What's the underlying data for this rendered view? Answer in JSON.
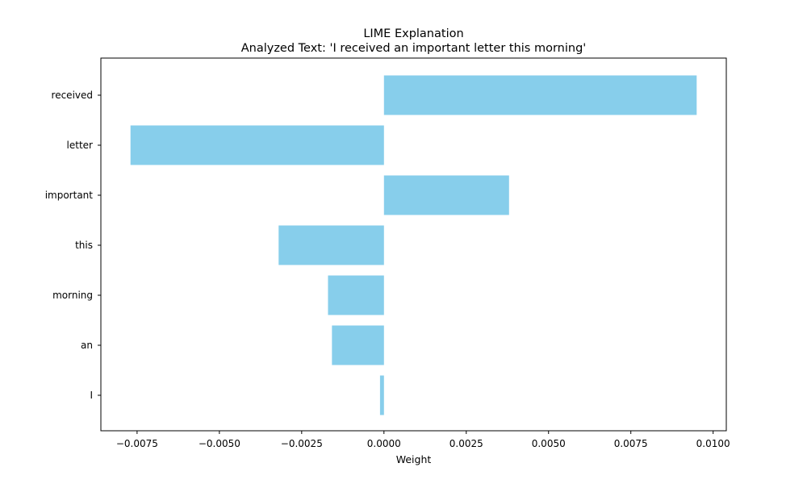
{
  "chart_data": {
    "type": "bar",
    "orientation": "horizontal",
    "title": "LIME Explanation",
    "subtitle": "Analyzed Text: 'I received an important letter this morning'",
    "xlabel": "Weight",
    "ylabel": "",
    "categories": [
      "received",
      "letter",
      "important",
      "this",
      "morning",
      "an",
      "I"
    ],
    "values": [
      0.0095,
      -0.0077,
      0.0038,
      -0.0032,
      -0.0017,
      -0.00158,
      -0.00012
    ],
    "xlim": [
      -0.0086,
      0.0104
    ],
    "xticks": [
      -0.0075,
      -0.005,
      -0.0025,
      0.0,
      0.0025,
      0.005,
      0.0075,
      0.01
    ],
    "xtick_labels": [
      "−0.0075",
      "−0.0050",
      "−0.0025",
      "0.0000",
      "0.0025",
      "0.0050",
      "0.0075",
      "0.0100"
    ],
    "bar_color": "#87CEEB",
    "grid": false,
    "legend": "none"
  }
}
